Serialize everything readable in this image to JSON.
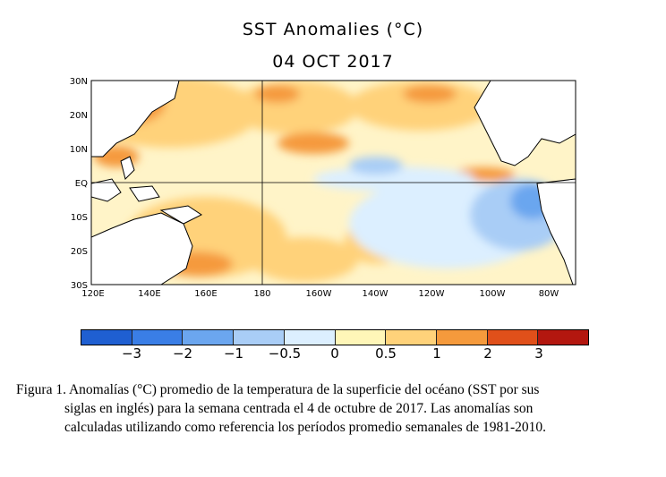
{
  "figure": {
    "title": "SST Anomalies (°C)",
    "date": "04 OCT 2017",
    "map_region": "Tropical Pacific Ocean",
    "lat_labels": [
      "30N",
      "20N",
      "10N",
      "EQ",
      "10S",
      "20S",
      "30S"
    ],
    "lon_labels": [
      "120E",
      "140E",
      "160E",
      "180",
      "160W",
      "140W",
      "120W",
      "100W",
      "80W"
    ],
    "grid_lines": [
      "EQ",
      "180"
    ]
  },
  "colorbar": {
    "tick_labels": [
      "−3",
      "−2",
      "−1",
      "−0.5",
      "0",
      "0.5",
      "1",
      "2",
      "3"
    ],
    "bins": [
      {
        "range": "< -3",
        "color": "#1f5fd1"
      },
      {
        "range": "-3 to -2",
        "color": "#3a7ee6"
      },
      {
        "range": "-2 to -1",
        "color": "#6ba6ef"
      },
      {
        "range": "-1 to -0.5",
        "color": "#a9cdf6"
      },
      {
        "range": "-0.5 to 0",
        "color": "#dcefff"
      },
      {
        "range": "0 to 0.5",
        "color": "#fff6b8"
      },
      {
        "range": "0.5 to 1",
        "color": "#ffd27a"
      },
      {
        "range": "1 to 2",
        "color": "#f59a3c"
      },
      {
        "range": "2 to 3",
        "color": "#e0501a"
      },
      {
        "range": "> 3",
        "color": "#b3170f"
      }
    ]
  },
  "caption": {
    "line1": "Figura 1. Anomalías (°C) promedio de la temperatura de la superficie del océano (SST por sus",
    "line2": "siglas en inglés) para la semana centrada el 4 de octubre de 2017. Las anomalías son",
    "line3": "calculadas utilizando como referencia los períodos promedio semanales de 1981-2010."
  }
}
